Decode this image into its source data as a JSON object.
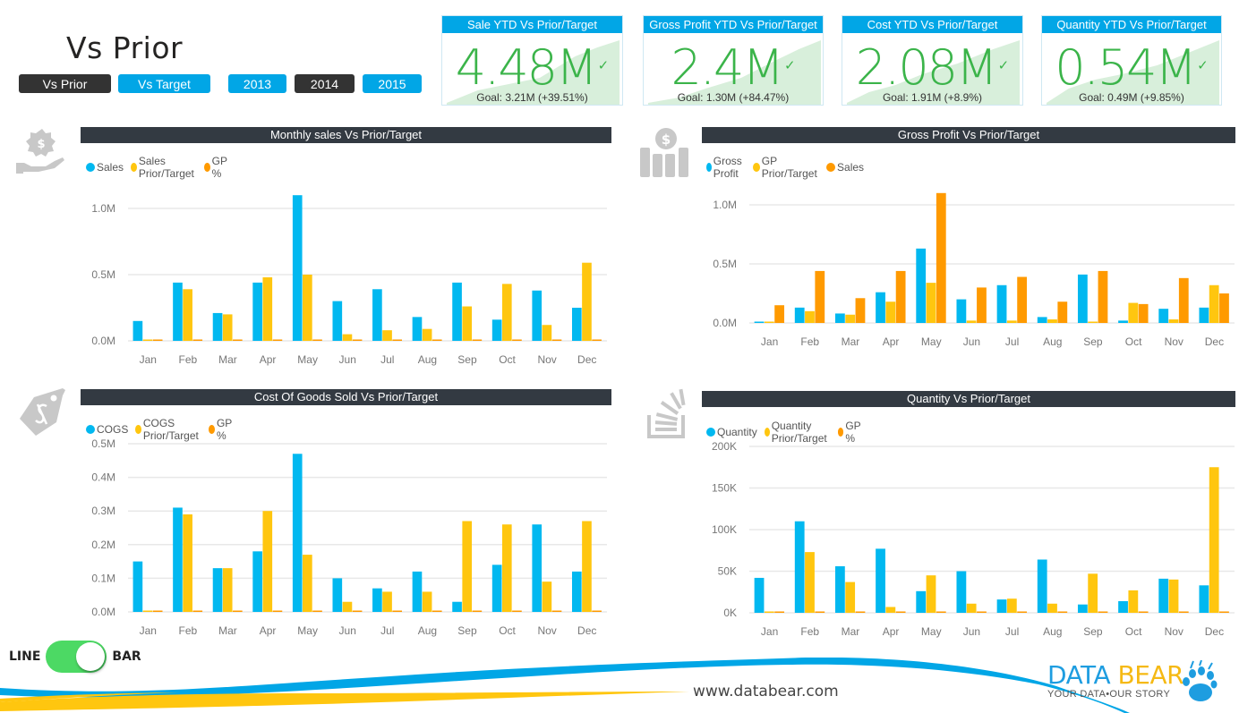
{
  "page_title": "Vs Prior",
  "mode_slicer": [
    {
      "label": "Vs Prior",
      "selected": true
    },
    {
      "label": "Vs Target",
      "selected": false
    }
  ],
  "year_slicer": [
    {
      "label": "2013",
      "selected": false
    },
    {
      "label": "2014",
      "selected": true
    },
    {
      "label": "2015",
      "selected": false
    }
  ],
  "kpis": [
    {
      "title": "Sale YTD Vs Prior/Target",
      "value": "4.48M",
      "goal": "Goal: 3.21M (+39.51%)",
      "status_icon": "check-icon"
    },
    {
      "title": "Gross Profit YTD Vs Prior/Target",
      "value": "2.4M",
      "goal": "Goal: 1.30M (+84.47%)",
      "status_icon": "check-icon"
    },
    {
      "title": "Cost YTD Vs Prior/Target",
      "value": "2.08M",
      "goal": "Goal: 1.91M (+8.9%)",
      "status_icon": "check-icon"
    },
    {
      "title": "Quantity YTD Vs Prior/Target",
      "value": "0.54M",
      "goal": "Goal: 0.49M (+9.85%)",
      "status_icon": "check-icon"
    }
  ],
  "colors": {
    "blue": "#01B8F0",
    "yellow": "#FFC60F",
    "orange": "#FF9A00",
    "kpi_green": "#3BB44A",
    "header_blue": "#01A6E6",
    "title_dark": "#333A42",
    "toggle_green": "#4CD964"
  },
  "toggle": {
    "left_label": "LINE",
    "right_label": "BAR",
    "state": "BAR"
  },
  "footer": {
    "url": "www.databear.com",
    "logo_data": "DATA",
    "logo_bear": "BEAR",
    "tagline": "YOUR DATA•OUR STORY"
  },
  "chart_data": [
    {
      "id": "monthly-sales",
      "type": "bar",
      "title": "Monthly sales Vs Prior/Target",
      "icon": "money-hand-icon",
      "categories": [
        "Jan",
        "Feb",
        "Mar",
        "Apr",
        "May",
        "Jun",
        "Jul",
        "Aug",
        "Sep",
        "Oct",
        "Nov",
        "Dec"
      ],
      "series": [
        {
          "name": "Sales",
          "color": "#01B8F0",
          "values": [
            0.15,
            0.44,
            0.21,
            0.44,
            1.1,
            0.3,
            0.39,
            0.18,
            0.44,
            0.16,
            0.38,
            0.25
          ]
        },
        {
          "name": "Sales Prior/Target",
          "color": "#FFC60F",
          "values": [
            0,
            0.39,
            0.2,
            0.48,
            0.5,
            0.05,
            0.08,
            0.09,
            0.26,
            0.43,
            0.12,
            0.59
          ]
        },
        {
          "name": "GP %",
          "color": "#FF9A00",
          "values": [
            0.01,
            0.01,
            0.01,
            0.01,
            0.01,
            0.01,
            0.01,
            0.01,
            0.01,
            0.01,
            0.01,
            0.01
          ]
        }
      ],
      "yticks": [
        {
          "v": 0,
          "label": "0.0M"
        },
        {
          "v": 0.5,
          "label": "0.5M"
        },
        {
          "v": 1.0,
          "label": "1.0M"
        }
      ],
      "ylim": [
        0,
        1.2
      ],
      "xlabel": "",
      "ylabel": "",
      "grid": true,
      "legend": "top-left"
    },
    {
      "id": "gross-profit",
      "type": "bar",
      "title": "Gross Profit Vs Prior/Target",
      "icon": "dollar-bars-icon",
      "categories": [
        "Jan",
        "Feb",
        "Mar",
        "Apr",
        "May",
        "Jun",
        "Jul",
        "Aug",
        "Sep",
        "Oct",
        "Nov",
        "Dec"
      ],
      "series": [
        {
          "name": "Gross Profit",
          "color": "#01B8F0",
          "values": [
            0.01,
            0.13,
            0.08,
            0.26,
            0.63,
            0.2,
            0.32,
            0.05,
            0.41,
            0.02,
            0.12,
            0.13
          ]
        },
        {
          "name": "GP Prior/Target",
          "color": "#FFC60F",
          "values": [
            0,
            0.1,
            0.07,
            0.18,
            0.34,
            0.02,
            0.02,
            0.03,
            -0.01,
            0.17,
            0.03,
            0.32
          ]
        },
        {
          "name": "Sales",
          "color": "#FF9A00",
          "values": [
            0.15,
            0.44,
            0.21,
            0.44,
            1.1,
            0.3,
            0.39,
            0.18,
            0.44,
            0.16,
            0.38,
            0.25
          ]
        }
      ],
      "yticks": [
        {
          "v": 0,
          "label": "0.0M"
        },
        {
          "v": 0.5,
          "label": "0.5M"
        },
        {
          "v": 1.0,
          "label": "1.0M"
        }
      ],
      "ylim": [
        -0.2,
        1.1
      ],
      "xlabel": "",
      "ylabel": "",
      "grid": true,
      "legend": "top-left"
    },
    {
      "id": "cogs",
      "type": "bar",
      "title": "Cost Of Goods Sold Vs Prior/Target",
      "icon": "price-tag-icon",
      "categories": [
        "Jan",
        "Feb",
        "Mar",
        "Apr",
        "May",
        "Jun",
        "Jul",
        "Aug",
        "Sep",
        "Oct",
        "Nov",
        "Dec"
      ],
      "series": [
        {
          "name": "COGS",
          "color": "#01B8F0",
          "values": [
            0.15,
            0.31,
            0.13,
            0.18,
            0.47,
            0.1,
            0.07,
            0.12,
            0.03,
            0.14,
            0.26,
            0.12
          ]
        },
        {
          "name": "COGS Prior/Target",
          "color": "#FFC60F",
          "values": [
            0,
            0.29,
            0.13,
            0.3,
            0.17,
            0.03,
            0.06,
            0.06,
            0.27,
            0.26,
            0.09,
            0.27
          ]
        },
        {
          "name": "GP %",
          "color": "#FF9A00",
          "values": [
            0.004,
            0.004,
            0.004,
            0.004,
            0.004,
            0.004,
            0.004,
            0.004,
            0.004,
            0.004,
            0.004,
            0.004
          ]
        }
      ],
      "yticks": [
        {
          "v": 0,
          "label": "0.0M"
        },
        {
          "v": 0.1,
          "label": "0.1M"
        },
        {
          "v": 0.2,
          "label": "0.2M"
        },
        {
          "v": 0.3,
          "label": "0.3M"
        },
        {
          "v": 0.4,
          "label": "0.4M"
        },
        {
          "v": 0.5,
          "label": "0.5M"
        }
      ],
      "ylim": [
        0,
        0.5
      ],
      "xlabel": "",
      "ylabel": "",
      "grid": true,
      "legend": "top-left"
    },
    {
      "id": "quantity",
      "type": "bar",
      "title": "Quantity Vs Prior/Target",
      "icon": "stack-icon",
      "categories": [
        "Jan",
        "Feb",
        "Mar",
        "Apr",
        "May",
        "Jun",
        "Jul",
        "Aug",
        "Sep",
        "Oct",
        "Nov",
        "Dec"
      ],
      "series": [
        {
          "name": "Quantity",
          "color": "#01B8F0",
          "values": [
            42,
            110,
            56,
            77,
            26,
            50,
            16,
            64,
            10,
            14,
            41,
            33
          ]
        },
        {
          "name": "Quantity Prior/Target",
          "color": "#FFC60F",
          "values": [
            0,
            73,
            37,
            7,
            45,
            11,
            17,
            11,
            47,
            27,
            40,
            175
          ]
        },
        {
          "name": "GP %",
          "color": "#FF9A00",
          "values": [
            1,
            1,
            1,
            1,
            1,
            1,
            1,
            1,
            1,
            1,
            1,
            1
          ]
        }
      ],
      "yticks": [
        {
          "v": 0,
          "label": "0K"
        },
        {
          "v": 50,
          "label": "50K"
        },
        {
          "v": 100,
          "label": "100K"
        },
        {
          "v": 150,
          "label": "150K"
        },
        {
          "v": 200,
          "label": "200K"
        }
      ],
      "ylim": [
        0,
        200
      ],
      "units": "thousands",
      "xlabel": "",
      "ylabel": "",
      "grid": true,
      "legend": "top-left"
    }
  ]
}
